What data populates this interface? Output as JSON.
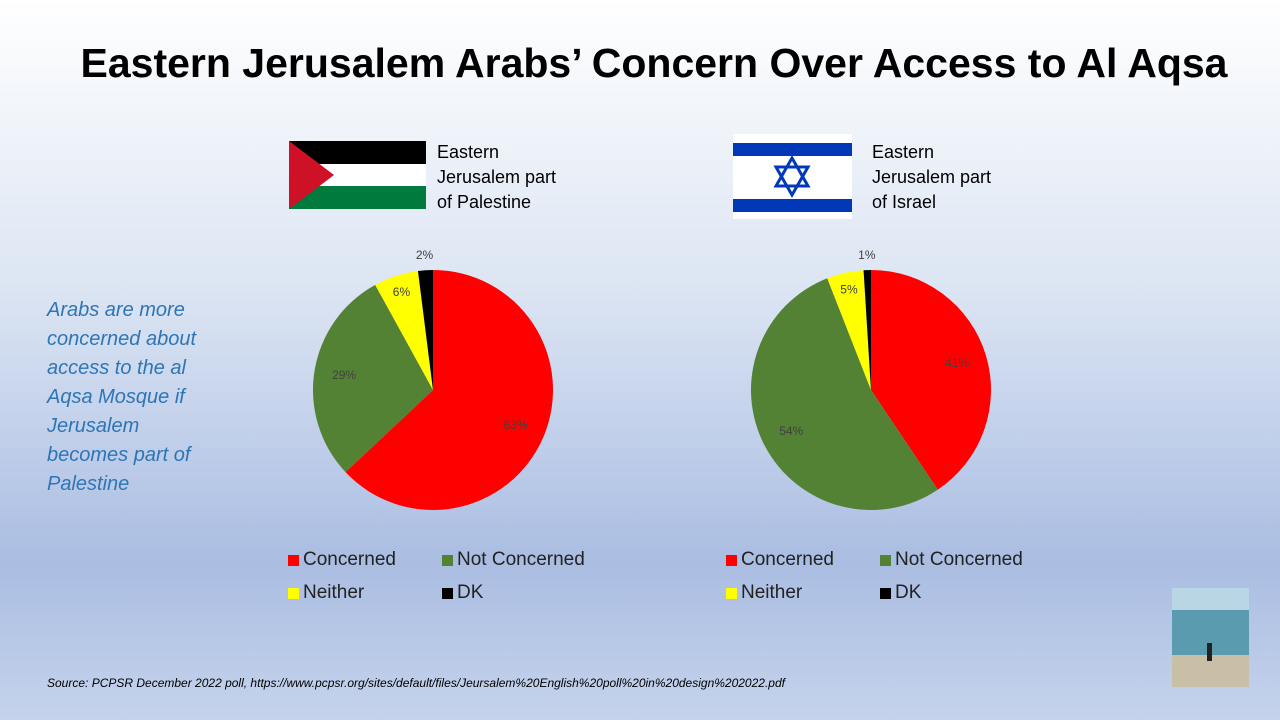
{
  "title": "Eastern Jerusalem Arabs’ Concern Over Access to Al Aqsa",
  "note": [
    "Arabs are more",
    "concerned about",
    "access to the al",
    "Aqsa Mosque if",
    "Jerusalem",
    "becomes part of",
    "Palestine"
  ],
  "source": "Source: PCPSR December 2022  poll, https://www.pcpsr.org/sites/default/files/Jeursalem%20English%20poll%20in%20design%202022.pdf",
  "chart_data": [
    {
      "type": "pie",
      "caption": [
        "Eastern",
        "Jerusalem part",
        "of Palestine"
      ],
      "categories": [
        "Concerned",
        "Not Concerned",
        "Neither",
        "DK"
      ],
      "values": [
        63,
        29,
        6,
        2
      ],
      "value_labels": [
        "63%",
        "29%",
        "6%",
        "2%"
      ],
      "colors": [
        "#ff0000",
        "#548235",
        "#ffff00",
        "#000000"
      ]
    },
    {
      "type": "pie",
      "caption": [
        "Eastern",
        "Jerusalem part",
        "of Israel"
      ],
      "categories": [
        "Concerned",
        "Not Concerned",
        "Neither",
        "DK"
      ],
      "values": [
        41,
        54,
        5,
        1
      ],
      "value_labels": [
        "41%",
        "54%",
        "5%",
        "1%"
      ],
      "colors": [
        "#ff0000",
        "#548235",
        "#ffff00",
        "#000000"
      ]
    }
  ]
}
